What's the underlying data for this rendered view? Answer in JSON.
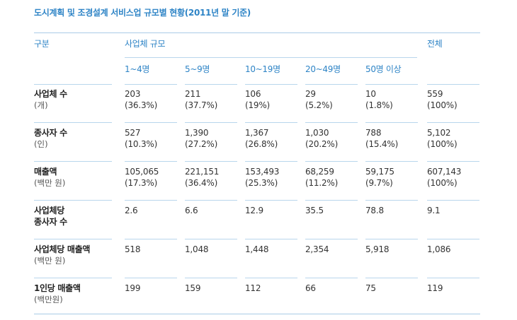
{
  "title": "도시계획 및 조경설계 서비스업 규모별 현황(2011년 말 기준)",
  "header": {
    "category": "구분",
    "group": "사업체 규모",
    "total": "전체",
    "sizes": [
      "1~4명",
      "5~9명",
      "10~19명",
      "20~49명",
      "50명 이상"
    ]
  },
  "rows": [
    {
      "label": "사업체 수",
      "unit": "(개)",
      "values": [
        "203",
        "211",
        "106",
        "29",
        "10",
        "559"
      ],
      "shares": [
        "(36.3%)",
        "(37.7%)",
        "(19%)",
        "(5.2%)",
        "(1.8%)",
        "(100%)"
      ]
    },
    {
      "label": "종사자 수",
      "unit": "(인)",
      "values": [
        "527",
        "1,390",
        "1,367",
        "1,030",
        "788",
        "5,102"
      ],
      "shares": [
        "(10.3%)",
        "(27.2%)",
        "(26.8%)",
        "(20.2%)",
        "(15.4%)",
        "(100%)"
      ]
    },
    {
      "label": "매출액",
      "unit": "(백만 원)",
      "values": [
        "105,065",
        "221,151",
        "153,493",
        "68,259",
        "59,175",
        "607,143"
      ],
      "shares": [
        "(17.3%)",
        "(36.4%)",
        "(25.3%)",
        "(11.2%)",
        "(9.7%)",
        "(100%)"
      ]
    },
    {
      "label": "사업체당",
      "label2": "종사자 수",
      "values": [
        "2.6",
        "6.6",
        "12.9",
        "35.5",
        "78.8",
        "9.1"
      ]
    },
    {
      "label": "사업체당 매출액",
      "unit": "(백만 원)",
      "values": [
        "518",
        "1,048",
        "1,448",
        "2,354",
        "5,918",
        "1,086"
      ]
    },
    {
      "label": "1인당 매출액",
      "unit": "(백만원)",
      "values": [
        "199",
        "159",
        "112",
        "66",
        "75",
        "119"
      ]
    }
  ]
}
